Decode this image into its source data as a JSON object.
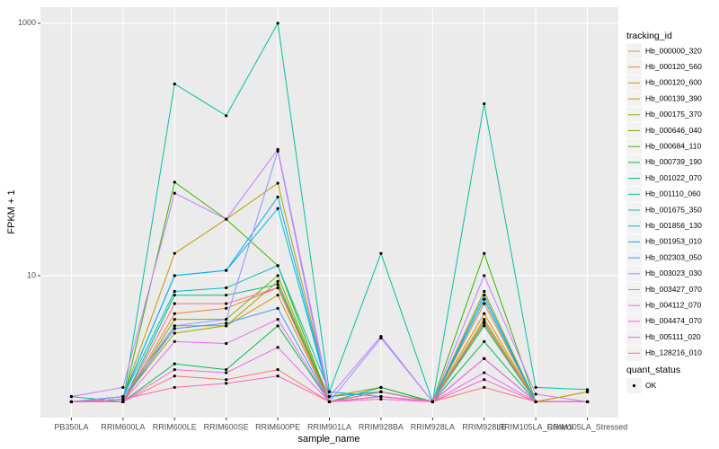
{
  "chart_data": {
    "type": "line",
    "log_y": true,
    "grid": true,
    "x_label": "sample_name",
    "y_label": "FPKM + 1",
    "legend_title": "tracking_id",
    "categories": [
      "PB350LA",
      "RRIM600LA",
      "RRIM600LE",
      "RRIM600SE",
      "RRIM600PE",
      "RRIM901LA",
      "RRIM928BA",
      "RRIM928LA",
      "RRIM928LE",
      "RRIM105LA_Control",
      "RRIM105LA_Stressed"
    ],
    "ylim": [
      0.75,
      1340
    ],
    "yticks": [
      10,
      1000
    ],
    "point_legend": {
      "title": "quant_status",
      "label": "OK",
      "color": "#000000"
    },
    "series": [
      {
        "name": "Hb_000000_320",
        "color": "#F8766D",
        "values": [
          1,
          1,
          1.6,
          1.5,
          1.8,
          1,
          1.1,
          1,
          1.3,
          1,
          1
        ]
      },
      {
        "name": "Hb_000120_560",
        "color": "#EA8331",
        "values": [
          1,
          1,
          5,
          5.5,
          8,
          1.1,
          1.3,
          1,
          6,
          1,
          1.2
        ]
      },
      {
        "name": "Hb_000120_600",
        "color": "#D89000",
        "values": [
          1,
          1,
          4,
          4,
          7,
          1,
          1.2,
          1,
          5,
          1,
          1
        ]
      },
      {
        "name": "Hb_000139_390",
        "color": "#C09B00",
        "values": [
          1,
          1.1,
          15,
          28,
          54,
          1.1,
          1.3,
          1,
          7.5,
          1,
          1.2
        ]
      },
      {
        "name": "Hb_000175_370",
        "color": "#A3A500",
        "values": [
          1,
          1.05,
          3.5,
          4,
          9,
          1,
          1.2,
          1,
          4.5,
          1,
          1
        ]
      },
      {
        "name": "Hb_000646_040",
        "color": "#7CAE00",
        "values": [
          1,
          1,
          4.5,
          4.5,
          10,
          1,
          1.1,
          1,
          4.2,
          1,
          1
        ]
      },
      {
        "name": "Hb_000684_110",
        "color": "#39B600",
        "values": [
          1,
          1,
          55,
          28,
          12,
          1,
          1.2,
          1,
          15,
          1,
          1
        ]
      },
      {
        "name": "Hb_000739_190",
        "color": "#00BB4E",
        "values": [
          1,
          1,
          2,
          1.8,
          4,
          1,
          1.3,
          1,
          3,
          1,
          1
        ]
      },
      {
        "name": "Hb_001022_070",
        "color": "#00BF7D",
        "values": [
          1,
          1,
          7,
          7,
          8.5,
          1,
          1.2,
          1,
          4,
          1,
          1
        ]
      },
      {
        "name": "Hb_001110_060",
        "color": "#00C1A3",
        "values": [
          1.1,
          1,
          330,
          185,
          1000,
          1.2,
          15,
          1,
          230,
          1.3,
          1.25
        ]
      },
      {
        "name": "Hb_001675_350",
        "color": "#00BFC4",
        "values": [
          1,
          1.1,
          7.5,
          8,
          12,
          1.2,
          1.1,
          1,
          6.5,
          1,
          1
        ]
      },
      {
        "name": "Hb_001856_130",
        "color": "#00BAE0",
        "values": [
          1,
          1.1,
          10,
          11,
          34,
          1.1,
          1.2,
          1,
          6.5,
          1,
          1
        ]
      },
      {
        "name": "Hb_001953_010",
        "color": "#00B0F6",
        "values": [
          1,
          1.1,
          10,
          11,
          42,
          1.1,
          1.2,
          1,
          7,
          1,
          1
        ]
      },
      {
        "name": "Hb_002303_050",
        "color": "#35A2FF",
        "values": [
          1,
          1.05,
          3.8,
          4.2,
          5.5,
          1,
          1.1,
          1,
          2.2,
          1,
          1
        ]
      },
      {
        "name": "Hb_003023_030",
        "color": "#9590FF",
        "values": [
          1,
          1.1,
          4,
          4.5,
          97,
          1,
          3.2,
          1,
          2.2,
          1,
          1
        ]
      },
      {
        "name": "Hb_003427_070",
        "color": "#C77CFF",
        "values": [
          1.1,
          1.3,
          45,
          28,
          100,
          1.1,
          3.3,
          1,
          10,
          1.15,
          1
        ]
      },
      {
        "name": "Hb_004112_070",
        "color": "#E76BF3",
        "values": [
          1,
          1,
          3,
          2.9,
          4.5,
          1,
          1.1,
          1,
          1.7,
          1,
          1
        ]
      },
      {
        "name": "Hb_004474_070",
        "color": "#FA62DB",
        "values": [
          1,
          1,
          1.8,
          1.7,
          2.7,
          1,
          1.05,
          1,
          2.2,
          1,
          1
        ]
      },
      {
        "name": "Hb_005111_020",
        "color": "#FF62BC",
        "values": [
          1,
          1.05,
          1.3,
          1.4,
          1.6,
          1,
          1.1,
          1,
          1.5,
          1,
          1
        ]
      },
      {
        "name": "Hb_128216_010",
        "color": "#FF6C91",
        "values": [
          1,
          1,
          6,
          6,
          8,
          1,
          1.2,
          1,
          4.3,
          1,
          1
        ]
      }
    ]
  }
}
